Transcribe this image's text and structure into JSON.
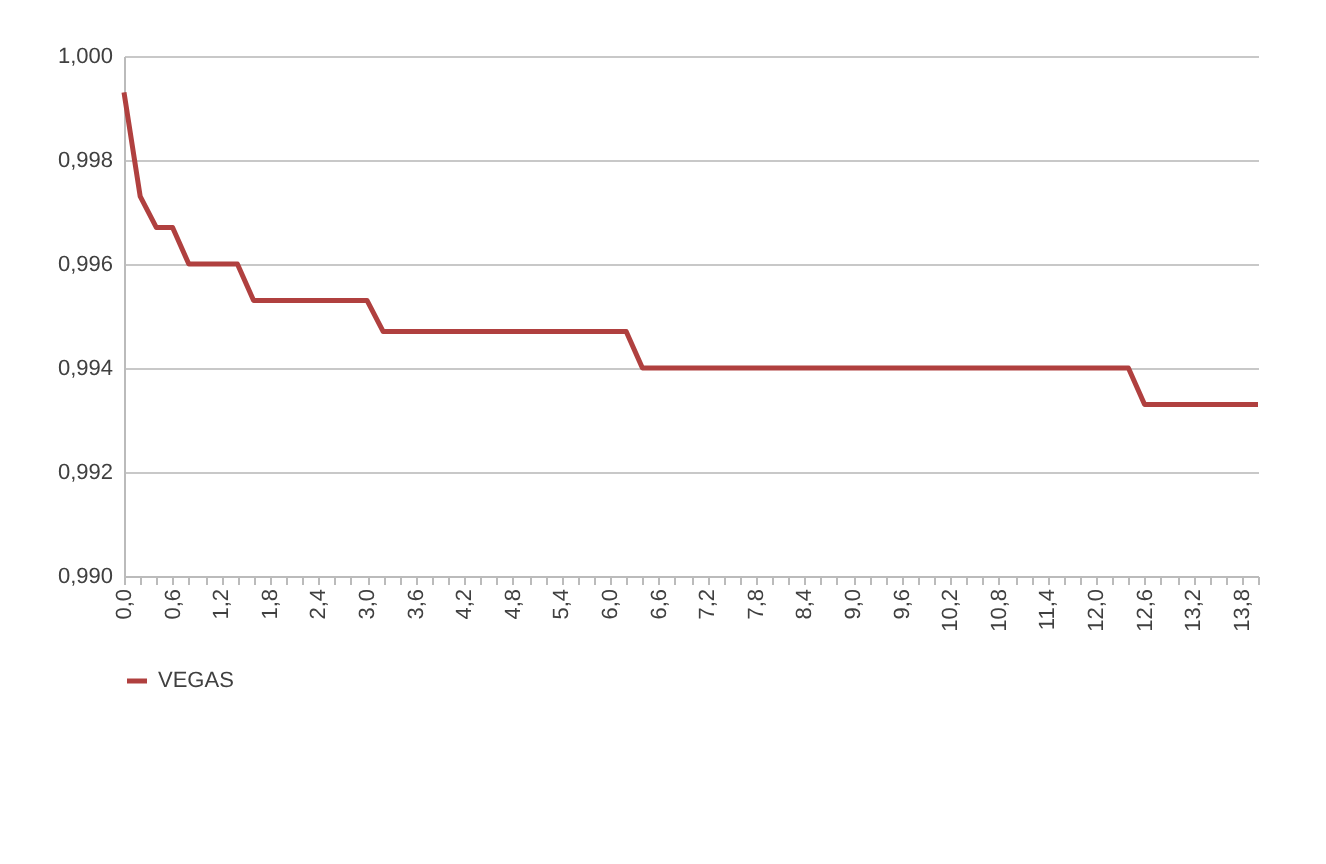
{
  "chart_data": {
    "type": "line",
    "categories": [
      "0,0",
      null,
      null,
      "0,6",
      null,
      null,
      "1,2",
      null,
      null,
      "1,8",
      null,
      null,
      "2,4",
      null,
      null,
      "3,0",
      null,
      null,
      "3,6",
      null,
      null,
      "4,2",
      null,
      null,
      "4,8",
      null,
      null,
      "5,4",
      null,
      null,
      "6,0",
      null,
      null,
      "6,6",
      null,
      null,
      "7,2",
      null,
      null,
      "7,8",
      null,
      null,
      "8,4",
      null,
      null,
      "9,0",
      null,
      null,
      "9,6",
      null,
      null,
      "10,2",
      null,
      null,
      "10,8",
      null,
      null,
      "11,4",
      null,
      null,
      "12,0",
      null,
      null,
      "12,6",
      null,
      null,
      "13,2",
      null,
      null,
      "13,8",
      null
    ],
    "series": [
      {
        "name": "VEGAS",
        "color": "#b0403f",
        "values": [
          0.9993,
          0.9973,
          0.9967,
          0.9967,
          0.996,
          0.996,
          0.996,
          0.996,
          0.9953,
          0.9953,
          0.9953,
          0.9953,
          0.9953,
          0.9953,
          0.9953,
          0.9953,
          0.9947,
          0.9947,
          0.9947,
          0.9947,
          0.9947,
          0.9947,
          0.9947,
          0.9947,
          0.9947,
          0.9947,
          0.9947,
          0.9947,
          0.9947,
          0.9947,
          0.9947,
          0.9947,
          0.994,
          0.994,
          0.994,
          0.994,
          0.994,
          0.994,
          0.994,
          0.994,
          0.994,
          0.994,
          0.994,
          0.994,
          0.994,
          0.994,
          0.994,
          0.994,
          0.994,
          0.994,
          0.994,
          0.994,
          0.994,
          0.994,
          0.994,
          0.994,
          0.994,
          0.994,
          0.994,
          0.994,
          0.994,
          0.994,
          0.994,
          0.9933,
          0.9933,
          0.9933,
          0.9933,
          0.9933,
          0.9933,
          0.9933,
          0.9933
        ]
      }
    ],
    "ylim": [
      0.99,
      1.0
    ],
    "yticks": [
      {
        "value": 0.99,
        "label": "0,990"
      },
      {
        "value": 0.992,
        "label": "0,992"
      },
      {
        "value": 0.994,
        "label": "0,994"
      },
      {
        "value": 0.996,
        "label": "0,996"
      },
      {
        "value": 0.998,
        "label": "0,998"
      },
      {
        "value": 1.0,
        "label": "1,000"
      }
    ],
    "grid": "y",
    "legend": "bottom",
    "marker": "none",
    "line_style": "solid"
  }
}
